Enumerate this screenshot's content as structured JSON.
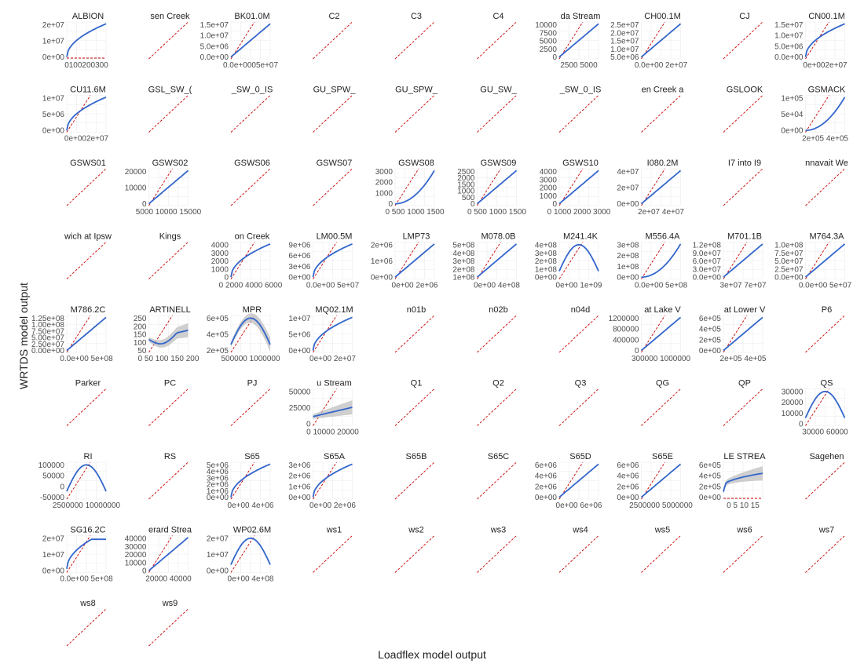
{
  "chart_data": {
    "type": "faceted-scatter-smooth",
    "xlabel": "Loadflex model output",
    "ylabel": "WRTDS model output",
    "reference_line": {
      "style": "dashed",
      "color": "#cc0000",
      "meaning": "1:1"
    },
    "smooth_color": "#3366cc",
    "ribbon_color": "#bbbbbb",
    "grid": true,
    "panels": [
      {
        "title": "ALBION",
        "yticks": [
          "2e+07",
          "1e+07",
          "0e+00"
        ],
        "xticks": [
          "0100200300"
        ],
        "shape": "concave",
        "ref": "flat"
      },
      {
        "title": "sen Creek",
        "shape": "none"
      },
      {
        "title": "BK01.0M",
        "yticks": [
          "1.5e+07",
          "1.0e+07",
          "5.0e+06",
          "0.0e+00"
        ],
        "xticks": [
          "0.0e+0005e+07"
        ],
        "shape": "linear"
      },
      {
        "title": "C2",
        "shape": "none"
      },
      {
        "title": "C3",
        "shape": "none"
      },
      {
        "title": "C4",
        "shape": "none"
      },
      {
        "title": "da Stream",
        "yticks": [
          "10000",
          "7500",
          "5000",
          "2500",
          "0"
        ],
        "xticks": [
          "2500 5000"
        ],
        "shape": "linear"
      },
      {
        "title": "CH00.1M",
        "yticks": [
          "2.5e+07",
          "2.0e+07",
          "1.5e+07",
          "1.0e+07",
          "5.0e+06"
        ],
        "xticks": [
          "0.0e+00 2e+07"
        ],
        "shape": "linear"
      },
      {
        "title": "CJ",
        "shape": "none"
      },
      {
        "title": "CN00.1M",
        "yticks": [
          "1.5e+07",
          "1.0e+07",
          "5.0e+06",
          "0.0e+00"
        ],
        "xticks": [
          "0e+002e+07"
        ],
        "shape": "concave"
      },
      {
        "title": "CU11.6M",
        "yticks": [
          "1e+07",
          "5e+06",
          "0e+00"
        ],
        "xticks": [
          "0e+002e+07"
        ],
        "shape": "concave"
      },
      {
        "title": "GSL_SW_(",
        "shape": "none"
      },
      {
        "title": "_SW_0_IS",
        "shape": "none"
      },
      {
        "title": "GU_SPW_",
        "shape": "none"
      },
      {
        "title": "GU_SPW_",
        "shape": "none"
      },
      {
        "title": "GU_SW_",
        "shape": "none"
      },
      {
        "title": "_SW_0_IS",
        "shape": "none"
      },
      {
        "title": "en Creek a",
        "shape": "none"
      },
      {
        "title": "GSLOOK",
        "shape": "none"
      },
      {
        "title": "GSMACK",
        "yticks": [
          "1e+05",
          "5e+04",
          "0e+00"
        ],
        "xticks": [
          "2e+05 4e+05"
        ],
        "shape": "convex"
      },
      {
        "title": "GSWS01",
        "shape": "none"
      },
      {
        "title": "GSWS02",
        "yticks": [
          "20000",
          "10000",
          "0"
        ],
        "xticks": [
          "5000 10000 15000"
        ],
        "shape": "linear"
      },
      {
        "title": "GSWS06",
        "shape": "none"
      },
      {
        "title": "GSWS07",
        "shape": "none"
      },
      {
        "title": "GSWS08",
        "yticks": [
          "3000",
          "2000",
          "1000",
          "0"
        ],
        "xticks": [
          "0 500 1000 1500"
        ],
        "shape": "convex"
      },
      {
        "title": "GSWS09",
        "yticks": [
          "2500",
          "2000",
          "1500",
          "1000",
          "500",
          "0"
        ],
        "xticks": [
          "0 500 1000 1500"
        ],
        "shape": "linear"
      },
      {
        "title": "GSWS10",
        "yticks": [
          "4000",
          "3000",
          "2000",
          "1000",
          "0"
        ],
        "xticks": [
          "0 1000 2000 3000"
        ],
        "shape": "linear"
      },
      {
        "title": "I080.2M",
        "yticks": [
          "4e+07",
          "2e+07",
          "0e+00"
        ],
        "xticks": [
          "2e+07 4e+07"
        ],
        "shape": "linear"
      },
      {
        "title": "I7 into I9",
        "shape": "none"
      },
      {
        "title": "nnavait We",
        "shape": "none"
      },
      {
        "title": "wich at Ipsw",
        "shape": "none"
      },
      {
        "title": "Kings",
        "shape": "none"
      },
      {
        "title": "on Creek",
        "yticks": [
          "4000",
          "3000",
          "2000",
          "1000",
          "0"
        ],
        "xticks": [
          "0 2000 4000 6000"
        ],
        "shape": "concave"
      },
      {
        "title": "LM00.5M",
        "yticks": [
          "9e+06",
          "6e+06",
          "3e+06",
          "0e+00"
        ],
        "xticks": [
          "0.0e+00 5e+07"
        ],
        "shape": "concave"
      },
      {
        "title": "LMP73",
        "yticks": [
          "2e+06",
          "1e+06",
          "0e+00"
        ],
        "xticks": [
          "0e+00 2e+06"
        ],
        "shape": "linear"
      },
      {
        "title": "M078.0B",
        "yticks": [
          "5e+08",
          "4e+08",
          "3e+08",
          "2e+08",
          "1e+08"
        ],
        "xticks": [
          "0e+00 4e+08"
        ],
        "shape": "linear"
      },
      {
        "title": "M241.4K",
        "yticks": [
          "4e+08",
          "3e+08",
          "2e+08",
          "1e+08",
          "0e+00"
        ],
        "xticks": [
          "0e+00 1e+09"
        ],
        "shape": "hump"
      },
      {
        "title": "M556.4A",
        "yticks": [
          "3e+08",
          "2e+08",
          "1e+08",
          "0e+00"
        ],
        "xticks": [
          "0.0e+00 5e+08"
        ],
        "shape": "convex"
      },
      {
        "title": "M701.1B",
        "yticks": [
          "1.2e+08",
          "9.0e+07",
          "6.0e+07",
          "3.0e+07",
          "0.0e+00"
        ],
        "xticks": [
          "3e+07 7e+07"
        ],
        "shape": "linear"
      },
      {
        "title": "M764.3A",
        "yticks": [
          "1.0e+08",
          "7.5e+07",
          "5.0e+07",
          "2.5e+07",
          "0.0e+00"
        ],
        "xticks": [
          "0.0e+00 5e+07"
        ],
        "shape": "linear"
      },
      {
        "title": "M786.2C",
        "yticks": [
          "1.25e+08",
          "1.00e+08",
          "7.50e+07",
          "5.00e+07",
          "2.50e+07",
          "0.00e+00"
        ],
        "xticks": [
          "0.0e+00 5e+08"
        ],
        "shape": "linear"
      },
      {
        "title": "ARTINELL",
        "yticks": [
          "250",
          "200",
          "150",
          "100",
          "50"
        ],
        "xticks": [
          "0 50 100 150 200"
        ],
        "shape": "dip",
        "ribbon": true
      },
      {
        "title": "MPR",
        "yticks": [
          "6e+05",
          "4e+05",
          "2e+05"
        ],
        "xticks": [
          "500000 1000000"
        ],
        "shape": "hump",
        "ribbon": true
      },
      {
        "title": "MQ02.1M",
        "yticks": [
          "1e+07",
          "5e+06",
          "0e+00"
        ],
        "xticks": [
          "0e+00 2e+07"
        ],
        "shape": "concave"
      },
      {
        "title": "n01b",
        "shape": "none"
      },
      {
        "title": "n02b",
        "shape": "none"
      },
      {
        "title": "n04d",
        "shape": "none"
      },
      {
        "title": "at Lake V",
        "yticks": [
          "1200000",
          "800000",
          "400000",
          "0"
        ],
        "xticks": [
          "300000 1000000"
        ],
        "shape": "linear"
      },
      {
        "title": "at Lower V",
        "yticks": [
          "6e+05",
          "4e+05",
          "2e+05",
          "0e+00"
        ],
        "xticks": [
          "2e+05 4e+05"
        ],
        "shape": "linear"
      },
      {
        "title": "P6",
        "shape": "none"
      },
      {
        "title": "Parker",
        "shape": "none"
      },
      {
        "title": "PC",
        "shape": "none"
      },
      {
        "title": "PJ",
        "shape": "none"
      },
      {
        "title": "u Stream",
        "yticks": [
          "50000",
          "25000",
          "0"
        ],
        "xticks": [
          "0 10000 20000"
        ],
        "shape": "flat-rise",
        "ribbon": true
      },
      {
        "title": "Q1",
        "shape": "none"
      },
      {
        "title": "Q2",
        "shape": "none"
      },
      {
        "title": "Q3",
        "shape": "none"
      },
      {
        "title": "QG",
        "shape": "none"
      },
      {
        "title": "QP",
        "shape": "none"
      },
      {
        "title": "QS",
        "yticks": [
          "30000",
          "20000",
          "10000",
          "0"
        ],
        "xticks": [
          "30000 60000"
        ],
        "shape": "hump"
      },
      {
        "title": "RI",
        "yticks": [
          "100000",
          "50000",
          "0",
          "-50000"
        ],
        "xticks": [
          "2500000 10000000"
        ],
        "shape": "hump"
      },
      {
        "title": "RS",
        "shape": "none"
      },
      {
        "title": "S65",
        "yticks": [
          "5e+06",
          "4e+06",
          "3e+06",
          "2e+06",
          "1e+06",
          "0e+00"
        ],
        "xticks": [
          "0e+00 4e+06"
        ],
        "shape": "concave"
      },
      {
        "title": "S65A",
        "yticks": [
          "3e+06",
          "2e+06",
          "1e+06",
          "0e+00"
        ],
        "xticks": [
          "0e+00 2e+06"
        ],
        "shape": "concave"
      },
      {
        "title": "S65B",
        "shape": "none"
      },
      {
        "title": "S65C",
        "shape": "none"
      },
      {
        "title": "S65D",
        "yticks": [
          "6e+06",
          "4e+06",
          "2e+06",
          "0e+00"
        ],
        "xticks": [
          "0e+00 6e+06"
        ],
        "shape": "linear"
      },
      {
        "title": "S65E",
        "yticks": [
          "6e+06",
          "4e+06",
          "2e+06",
          "0e+00"
        ],
        "xticks": [
          "2500000 5000000"
        ],
        "shape": "linear"
      },
      {
        "title": "LE STREA",
        "yticks": [
          "6e+05",
          "4e+05",
          "2e+05",
          "0e+00"
        ],
        "xticks": [
          "0 5 10 15"
        ],
        "shape": "spike-rise",
        "ribbon": true,
        "ref": "flat"
      },
      {
        "title": "Sagehen",
        "shape": "none"
      },
      {
        "title": "SG16.2C",
        "yticks": [
          "2e+07",
          "1e+07",
          "0e+00"
        ],
        "xticks": [
          "0.0e+00 5e+08"
        ],
        "shape": "plateau"
      },
      {
        "title": "erard Strea",
        "yticks": [
          "40000",
          "30000",
          "20000",
          "10000",
          "0"
        ],
        "xticks": [
          "20000 40000"
        ],
        "shape": "linear"
      },
      {
        "title": "WP02.6M",
        "yticks": [
          "2e+07",
          "1e+07",
          "0e+00"
        ],
        "xticks": [
          "0e+00 4e+08"
        ],
        "shape": "hump"
      },
      {
        "title": "ws1",
        "shape": "none"
      },
      {
        "title": "ws2",
        "shape": "none"
      },
      {
        "title": "ws3",
        "shape": "none"
      },
      {
        "title": "ws4",
        "shape": "none"
      },
      {
        "title": "ws5",
        "shape": "none"
      },
      {
        "title": "ws6",
        "shape": "none"
      },
      {
        "title": "ws7",
        "shape": "none"
      },
      {
        "title": "ws8",
        "shape": "none"
      },
      {
        "title": "ws9",
        "shape": "none"
      }
    ]
  }
}
